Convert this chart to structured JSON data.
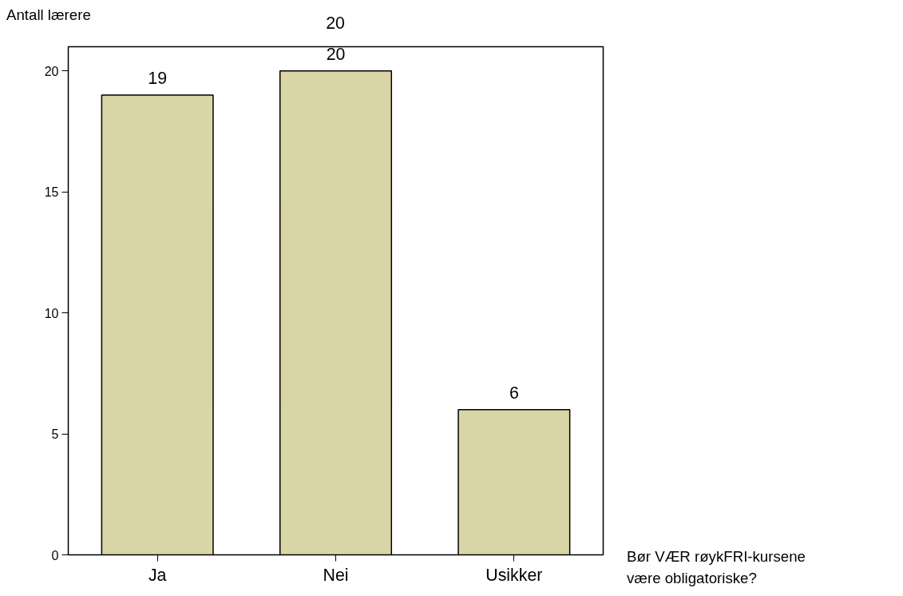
{
  "chart_data": {
    "type": "bar",
    "ylabel": "Antall lærere",
    "xlabel": "Bør VÆR røykFRI-kursene være obligatoriske?",
    "categories": [
      "Ja",
      "Nei",
      "Usikker"
    ],
    "values": [
      19,
      20,
      6
    ],
    "color": "#d9d5a6",
    "ylim": [
      0,
      21
    ],
    "yticks": [
      0,
      5,
      10,
      15,
      20
    ],
    "grid": false,
    "data_labels": true,
    "annotations": [
      "20"
    ]
  }
}
